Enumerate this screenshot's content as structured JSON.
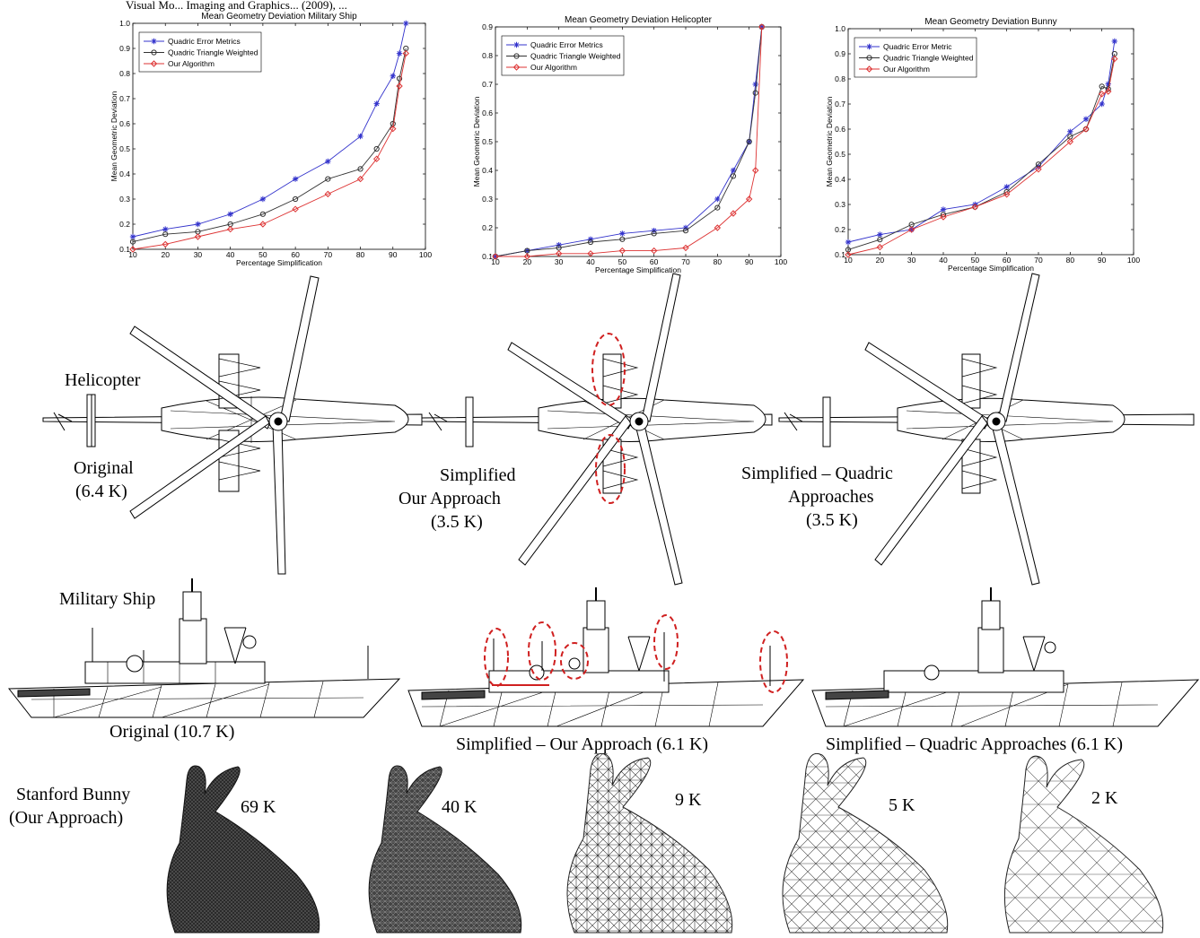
{
  "header_fragment": "Visual Mo... Imaging and Graphics... (2009), ...",
  "chart_data": [
    {
      "type": "line",
      "title": "Mean Geometry Deviation Military Ship",
      "xlabel": "Percentage Simplification",
      "ylabel": "Mean Geometric Deviation",
      "xlim": [
        10,
        100
      ],
      "ylim": [
        0.1,
        1.0
      ],
      "xticks": [
        "10",
        "20",
        "30",
        "40",
        "50",
        "60",
        "70",
        "80",
        "90",
        "100"
      ],
      "yticks": [
        "0.1",
        "0.2",
        "0.3",
        "0.4",
        "0.5",
        "0.6",
        "0.7",
        "0.8",
        "0.9",
        "1.0"
      ],
      "legend_position": "top-left",
      "grid": false,
      "series": [
        {
          "name": "Quadric Error Metrics",
          "color": "#3333cc",
          "marker": "star",
          "x": [
            10,
            20,
            30,
            40,
            50,
            60,
            70,
            80,
            85,
            90,
            92,
            94
          ],
          "y": [
            0.15,
            0.18,
            0.2,
            0.24,
            0.3,
            0.38,
            0.45,
            0.55,
            0.68,
            0.79,
            0.88,
            1.0
          ]
        },
        {
          "name": "Quadric Triangle Weighted",
          "color": "#333333",
          "marker": "circle",
          "x": [
            10,
            20,
            30,
            40,
            50,
            60,
            70,
            80,
            85,
            90,
            92,
            94
          ],
          "y": [
            0.13,
            0.16,
            0.17,
            0.2,
            0.24,
            0.3,
            0.38,
            0.42,
            0.5,
            0.6,
            0.78,
            0.9
          ]
        },
        {
          "name": "Our Algorithm",
          "color": "#dd3333",
          "marker": "diamond",
          "x": [
            10,
            20,
            30,
            40,
            50,
            60,
            70,
            80,
            85,
            90,
            92,
            94
          ],
          "y": [
            0.1,
            0.12,
            0.15,
            0.18,
            0.2,
            0.26,
            0.32,
            0.38,
            0.46,
            0.58,
            0.75,
            0.88
          ]
        }
      ]
    },
    {
      "type": "line",
      "title": "Mean Geometry Deviation Helicopter",
      "xlabel": "Percentage Simplification",
      "ylabel": "Mean Geometric Deviation",
      "xlim": [
        10,
        100
      ],
      "ylim": [
        0.1,
        0.9
      ],
      "xticks": [
        "10",
        "20",
        "30",
        "40",
        "50",
        "60",
        "70",
        "80",
        "90",
        "100"
      ],
      "yticks": [
        "0.1",
        "0.2",
        "0.3",
        "0.4",
        "0.5",
        "0.6",
        "0.7",
        "0.8",
        "0.9"
      ],
      "legend_position": "top-left",
      "grid": false,
      "series": [
        {
          "name": "Quadric Error Metrics",
          "color": "#3333cc",
          "marker": "star",
          "x": [
            10,
            20,
            30,
            40,
            50,
            60,
            70,
            80,
            85,
            90,
            92,
            94
          ],
          "y": [
            0.1,
            0.12,
            0.14,
            0.16,
            0.18,
            0.19,
            0.2,
            0.3,
            0.4,
            0.5,
            0.7,
            0.9
          ]
        },
        {
          "name": "Quadric Triangle Weighted",
          "color": "#333333",
          "marker": "circle",
          "x": [
            10,
            20,
            30,
            40,
            50,
            60,
            70,
            80,
            85,
            90,
            92,
            94
          ],
          "y": [
            0.1,
            0.12,
            0.13,
            0.15,
            0.16,
            0.18,
            0.19,
            0.27,
            0.38,
            0.5,
            0.67,
            0.9
          ]
        },
        {
          "name": "Our Algorithm",
          "color": "#dd3333",
          "marker": "diamond",
          "x": [
            10,
            20,
            30,
            40,
            50,
            60,
            70,
            80,
            85,
            90,
            92,
            94
          ],
          "y": [
            0.1,
            0.1,
            0.11,
            0.11,
            0.12,
            0.12,
            0.13,
            0.2,
            0.25,
            0.3,
            0.4,
            0.9
          ]
        }
      ]
    },
    {
      "type": "line",
      "title": "Mean Geometry Deviation Bunny",
      "xlabel": "Percentage Simplification",
      "ylabel": "Mean Geometric Deviation",
      "xlim": [
        10,
        100
      ],
      "ylim": [
        0.1,
        1.0
      ],
      "xticks": [
        "10",
        "20",
        "30",
        "40",
        "50",
        "60",
        "70",
        "80",
        "90",
        "100"
      ],
      "yticks": [
        "0.1",
        "0.2",
        "0.3",
        "0.4",
        "0.5",
        "0.6",
        "0.7",
        "0.8",
        "0.9",
        "1.0"
      ],
      "legend_position": "top-left",
      "grid": false,
      "series": [
        {
          "name": "Quadric Error Metric",
          "color": "#3333cc",
          "marker": "star",
          "x": [
            10,
            20,
            30,
            40,
            50,
            60,
            70,
            80,
            85,
            90,
            92,
            94
          ],
          "y": [
            0.15,
            0.18,
            0.2,
            0.28,
            0.3,
            0.37,
            0.45,
            0.59,
            0.64,
            0.7,
            0.78,
            0.95
          ]
        },
        {
          "name": "Quadric Triangle Weighted",
          "color": "#333333",
          "marker": "circle",
          "x": [
            10,
            20,
            30,
            40,
            50,
            60,
            70,
            80,
            85,
            90,
            92,
            94
          ],
          "y": [
            0.12,
            0.16,
            0.22,
            0.26,
            0.29,
            0.35,
            0.46,
            0.57,
            0.6,
            0.77,
            0.76,
            0.9
          ]
        },
        {
          "name": "Our Algorithm",
          "color": "#dd3333",
          "marker": "diamond",
          "x": [
            10,
            20,
            30,
            40,
            50,
            60,
            70,
            80,
            85,
            90,
            92,
            94
          ],
          "y": [
            0.1,
            0.13,
            0.2,
            0.25,
            0.29,
            0.34,
            0.44,
            0.55,
            0.6,
            0.74,
            0.75,
            0.88
          ]
        }
      ]
    }
  ],
  "labels": {
    "helicopter": "Helicopter",
    "original_1": "Original",
    "original_1_count": "(6.4 K)",
    "simplified_1": "Simplified",
    "our_approach_1": "Our Approach",
    "our_approach_1_count": "(3.5 K)",
    "quadric_1a": "Simplified – Quadric",
    "quadric_1b": "Approaches",
    "quadric_1_count": "(3.5 K)",
    "military_ship": "Military Ship",
    "original_2": "Original (10.7 K)",
    "our_approach_2": "Simplified – Our Approach (6.1 K)",
    "quadric_2": "Simplified – Quadric Approaches (6.1 K)",
    "bunny_title_1": "Stanford Bunny",
    "bunny_title_2": "(Our Approach)",
    "bunny_69": "69 K",
    "bunny_40": "40 K",
    "bunny_9": "9 K",
    "bunny_5": "5 K",
    "bunny_2": "2 K"
  }
}
